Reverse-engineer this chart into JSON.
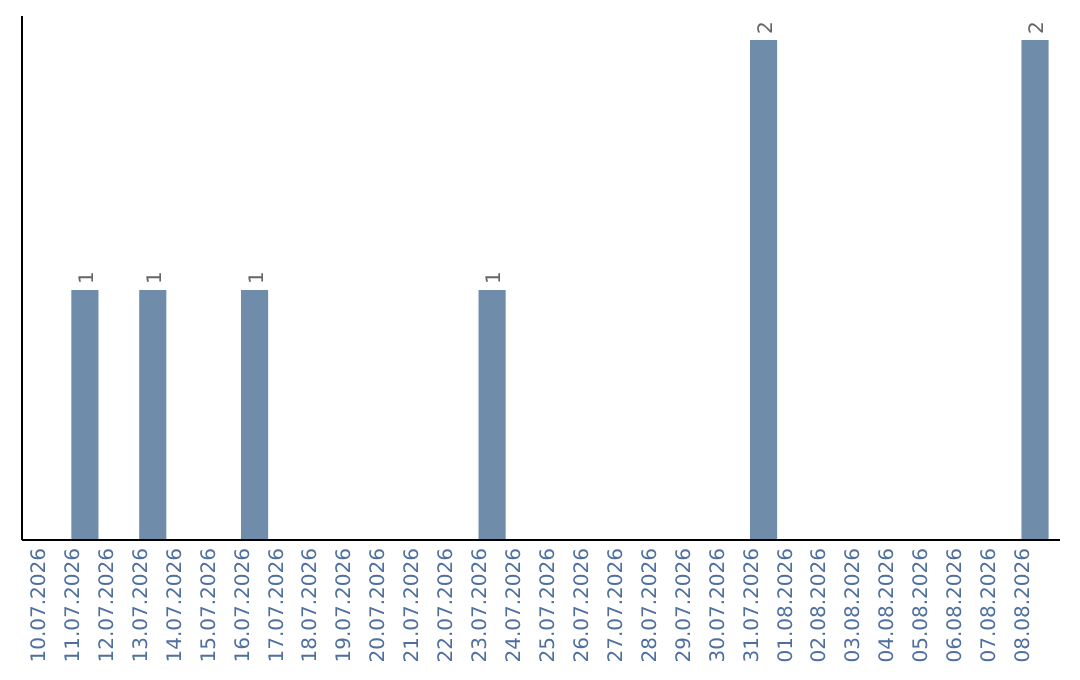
{
  "chart_data": {
    "type": "bar",
    "categories": [
      "10.07.2026",
      "11.07.2026",
      "12.07.2026",
      "13.07.2026",
      "14.07.2026",
      "15.07.2026",
      "16.07.2026",
      "17.07.2026",
      "18.07.2026",
      "19.07.2026",
      "20.07.2026",
      "21.07.2026",
      "22.07.2026",
      "23.07.2026",
      "24.07.2026",
      "25.07.2026",
      "26.07.2026",
      "27.07.2026",
      "28.07.2026",
      "29.07.2026",
      "30.07.2026",
      "31.07.2026",
      "01.08.2026",
      "02.08.2026",
      "03.08.2026",
      "04.08.2026",
      "05.08.2026",
      "06.08.2026",
      "07.08.2026",
      "08.08.2026"
    ],
    "values": [
      0,
      1,
      0,
      1,
      0,
      0,
      1,
      0,
      0,
      0,
      0,
      0,
      0,
      1,
      0,
      0,
      0,
      0,
      0,
      0,
      0,
      2,
      0,
      0,
      0,
      0,
      0,
      0,
      0,
      2
    ],
    "value_labels": [
      null,
      "1",
      null,
      "1",
      null,
      null,
      "1",
      null,
      null,
      null,
      null,
      null,
      null,
      "1",
      null,
      null,
      null,
      null,
      null,
      null,
      null,
      "2",
      null,
      null,
      null,
      null,
      null,
      null,
      null,
      "2"
    ],
    "color": "#6f8dab",
    "tick_labels": "x",
    "grid": false
  }
}
